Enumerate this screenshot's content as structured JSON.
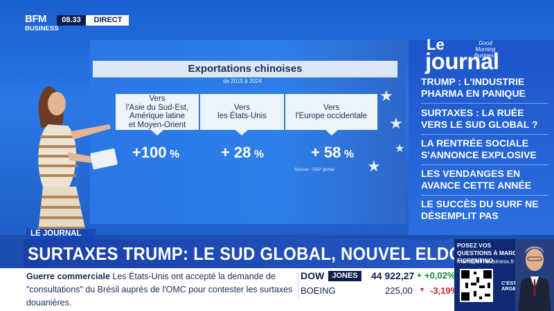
{
  "header": {
    "brand_top": "BFM",
    "brand_bottom": "BUSINESS",
    "time": "08.33",
    "live_label": "DIRECT"
  },
  "screen": {
    "title": "Exportations chinoises",
    "period": "de 2015 à 2024",
    "destinations": [
      {
        "label": "Vers\nl'Asie du Sud-Est,\nAmérique latine\net Moyen-Orient",
        "value_main": "+100",
        "value_unit": " %"
      },
      {
        "label": "Vers\nles États-Unis",
        "value_main": "+ 28",
        "value_unit": " %"
      },
      {
        "label": "Vers\nl'Europe occidentale",
        "value_main": "+ 58",
        "value_unit": " %"
      }
    ],
    "source": "Source : S&P global"
  },
  "right_panel": {
    "logo_le": "Le",
    "logo_journal": "journal",
    "logo_badge": "Good Morning Business",
    "headlines": [
      "TRUMP : L'INDUSTRIE PHARMA EN PANIQUE",
      "SURTAXES : LA RUÉE VERS LE SUD GLOBAL ?",
      "LA RENTRÉE SOCIALE S'ANNONCE EXPLOSIVE",
      "LES VENDANGES EN AVANCE CETTE ANNÉE",
      "LE SUCCÈS DU SURF NE DÉSEMPLIT PAS"
    ]
  },
  "lower_third": {
    "tag": "LE JOURNAL",
    "headline": "SURTAXES TRUMP: LE SUD GLOBAL, NOUVEL ELDORADO"
  },
  "ticker": {
    "topic": "Guerre commerciale",
    "text_1": " Les États-Unis ont accepté la demande de",
    "text_2": "\"consultations\" du Brésil auprès de l'OMC pour contester les surtaxes douanières."
  },
  "market": {
    "index_name": "DOW",
    "index_badge": "JONES",
    "index_value": "44 922,27",
    "index_change": "+0,02%",
    "stock_name": "BOEING",
    "stock_value": "225,00",
    "stock_change": "-3,19%",
    "up_arrow": "▲",
    "down_arrow": "▼"
  },
  "promo": {
    "question": "POSEZ VOS QUESTIONS À MARC FIORENTINO",
    "email": "marc@bfmbusiness.fr",
    "show_name": "C'EST VOTRE ARGENT"
  },
  "colors": {
    "brand_blue": "#1748b7",
    "navy": "#0d1e4d",
    "positive": "#0a8a2e",
    "negative": "#d11c2a"
  }
}
